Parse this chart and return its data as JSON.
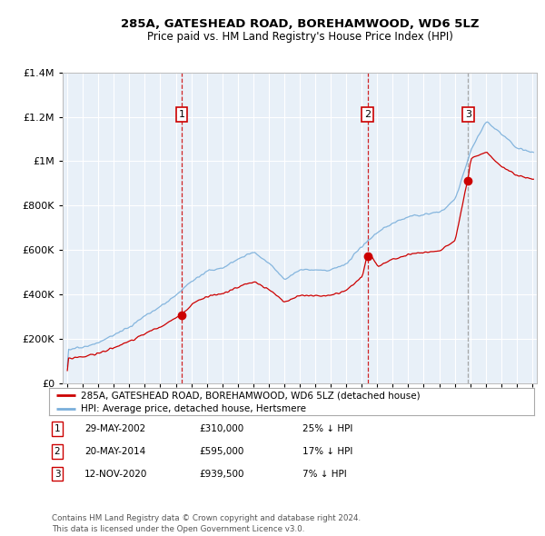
{
  "title": "285A, GATESHEAD ROAD, BOREHAMWOOD, WD6 5LZ",
  "subtitle": "Price paid vs. HM Land Registry's House Price Index (HPI)",
  "property_label": "285A, GATESHEAD ROAD, BOREHAMWOOD, WD6 5LZ (detached house)",
  "hpi_label": "HPI: Average price, detached house, Hertsmere",
  "property_color": "#cc0000",
  "hpi_color": "#7aafdb",
  "background_color": "#ffffff",
  "plot_bg_color": "#e8f0f8",
  "ylim": [
    0,
    1400000
  ],
  "yticks": [
    0,
    200000,
    400000,
    600000,
    800000,
    1000000,
    1200000,
    1400000
  ],
  "xlim_start": 1994.7,
  "xlim_end": 2025.3,
  "transactions": [
    {
      "num": 1,
      "date": "29-MAY-2002",
      "price": 310000,
      "pct": "25%",
      "year": 2002.37,
      "line_color": "#cc0000",
      "line_style": "--"
    },
    {
      "num": 2,
      "date": "20-MAY-2014",
      "price": 595000,
      "pct": "17%",
      "year": 2014.37,
      "line_color": "#cc0000",
      "line_style": "--"
    },
    {
      "num": 3,
      "date": "12-NOV-2020",
      "price": 939500,
      "pct": "7%",
      "year": 2020.86,
      "line_color": "#999999",
      "line_style": "--"
    }
  ],
  "footer": "Contains HM Land Registry data © Crown copyright and database right 2024.\nThis data is licensed under the Open Government Licence v3.0."
}
